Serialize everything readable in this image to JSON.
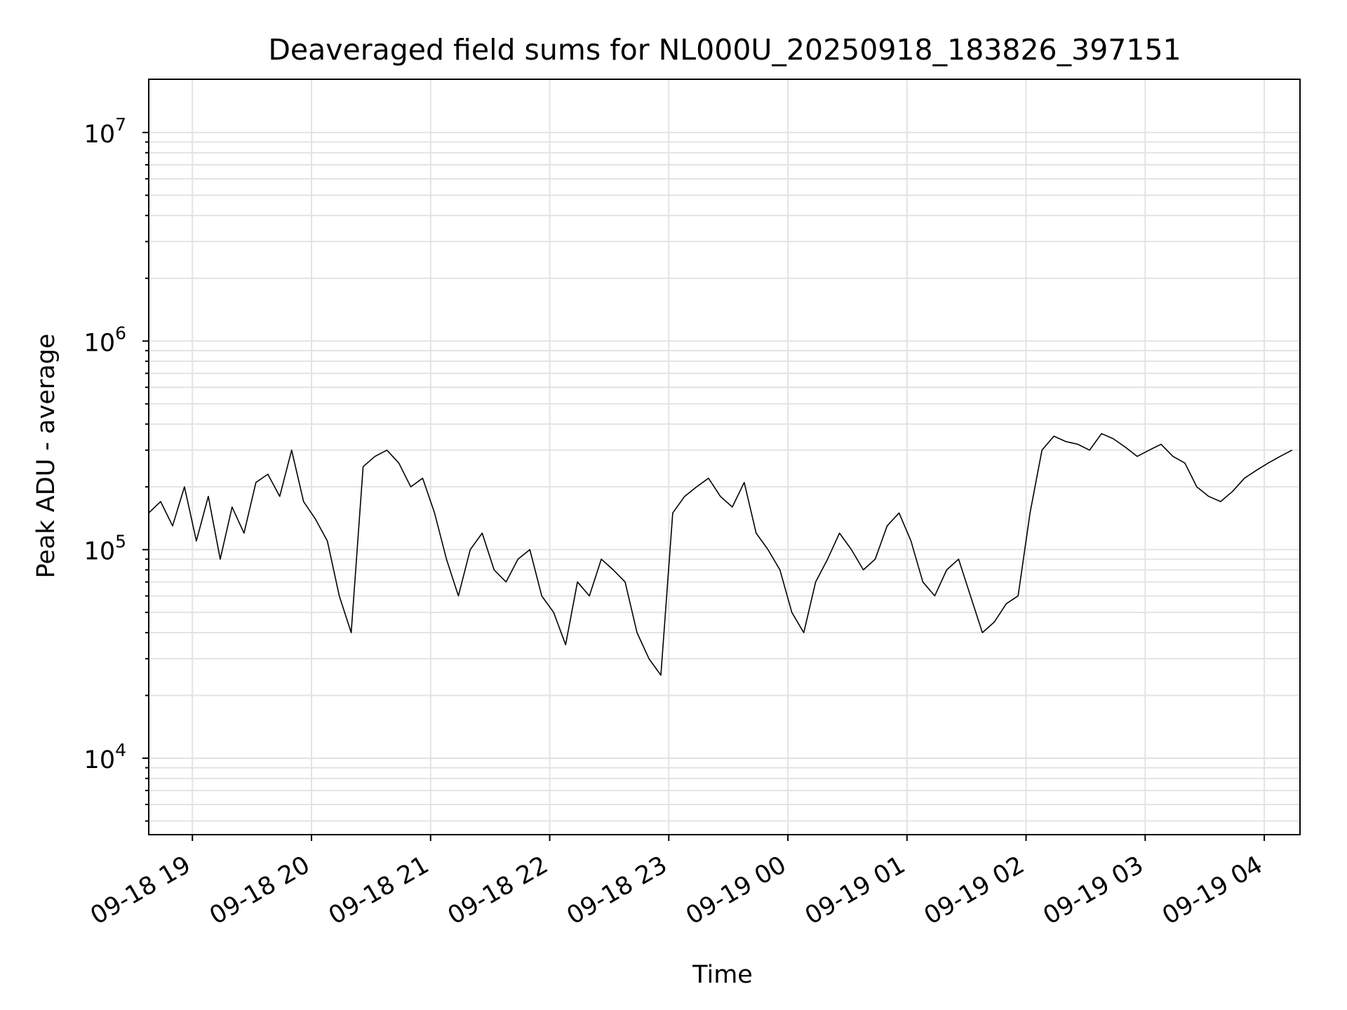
{
  "chart_data": {
    "type": "line",
    "title": "Deaveraged field sums for NL000U_20250918_183826_397151",
    "xlabel": "Time",
    "ylabel": "Peak ADU - average",
    "y_scale": "log",
    "x_range": [
      "2025-09-18 18:38",
      "2025-09-19 04:18"
    ],
    "ylim": [
      4300,
      18000000
    ],
    "x_ticks": [
      "09-18 19",
      "09-18 20",
      "09-18 21",
      "09-18 22",
      "09-18 23",
      "09-19 00",
      "09-19 01",
      "09-19 02",
      "09-19 03",
      "09-19 04"
    ],
    "y_ticks": [
      {
        "base": "10",
        "exp": "4"
      },
      {
        "base": "10",
        "exp": "5"
      },
      {
        "base": "10",
        "exp": "6"
      },
      {
        "base": "10",
        "exp": "7"
      }
    ],
    "grid": true,
    "line_color": "#000000",
    "grid_color": "#e3e3e3",
    "series": [
      {
        "x": [
          "2025-09-18 18:38",
          "2025-09-18 18:44",
          "2025-09-18 18:50",
          "2025-09-18 18:56",
          "2025-09-18 19:02",
          "2025-09-18 19:08",
          "2025-09-18 19:14",
          "2025-09-18 19:20",
          "2025-09-18 19:26",
          "2025-09-18 19:32",
          "2025-09-18 19:38",
          "2025-09-18 19:44",
          "2025-09-18 19:50",
          "2025-09-18 19:56",
          "2025-09-18 20:02",
          "2025-09-18 20:08",
          "2025-09-18 20:14",
          "2025-09-18 20:20",
          "2025-09-18 20:26",
          "2025-09-18 20:32",
          "2025-09-18 20:38",
          "2025-09-18 20:44",
          "2025-09-18 20:50",
          "2025-09-18 20:56",
          "2025-09-18 21:02",
          "2025-09-18 21:08",
          "2025-09-18 21:14",
          "2025-09-18 21:20",
          "2025-09-18 21:26",
          "2025-09-18 21:32",
          "2025-09-18 21:38",
          "2025-09-18 21:44",
          "2025-09-18 21:50",
          "2025-09-18 21:56",
          "2025-09-18 22:02",
          "2025-09-18 22:08",
          "2025-09-18 22:14",
          "2025-09-18 22:20",
          "2025-09-18 22:26",
          "2025-09-18 22:32",
          "2025-09-18 22:38",
          "2025-09-18 22:44",
          "2025-09-18 22:50",
          "2025-09-18 22:56",
          "2025-09-18 23:02",
          "2025-09-18 23:08",
          "2025-09-18 23:14",
          "2025-09-18 23:20",
          "2025-09-18 23:26",
          "2025-09-18 23:32",
          "2025-09-18 23:38",
          "2025-09-18 23:44",
          "2025-09-18 23:50",
          "2025-09-18 23:56",
          "2025-09-19 00:02",
          "2025-09-19 00:08",
          "2025-09-19 00:14",
          "2025-09-19 00:20",
          "2025-09-19 00:26",
          "2025-09-19 00:32",
          "2025-09-19 00:38",
          "2025-09-19 00:44",
          "2025-09-19 00:50",
          "2025-09-19 00:56",
          "2025-09-19 01:02",
          "2025-09-19 01:08",
          "2025-09-19 01:14",
          "2025-09-19 01:20",
          "2025-09-19 01:26",
          "2025-09-19 01:32",
          "2025-09-19 01:38",
          "2025-09-19 01:44",
          "2025-09-19 01:50",
          "2025-09-19 01:56",
          "2025-09-19 02:02",
          "2025-09-19 02:08",
          "2025-09-19 02:14",
          "2025-09-19 02:20",
          "2025-09-19 02:26",
          "2025-09-19 02:32",
          "2025-09-19 02:38",
          "2025-09-19 02:44",
          "2025-09-19 02:50",
          "2025-09-19 02:56",
          "2025-09-19 03:02",
          "2025-09-19 03:08",
          "2025-09-19 03:14",
          "2025-09-19 03:20",
          "2025-09-19 03:26",
          "2025-09-19 03:32",
          "2025-09-19 03:38",
          "2025-09-19 03:44",
          "2025-09-19 03:50",
          "2025-09-19 03:56",
          "2025-09-19 04:02",
          "2025-09-19 04:08",
          "2025-09-19 04:14"
        ],
        "y": [
          150000,
          170000,
          130000,
          200000,
          110000,
          180000,
          90000,
          160000,
          120000,
          210000,
          230000,
          180000,
          300000,
          170000,
          140000,
          110000,
          60000,
          40000,
          250000,
          280000,
          300000,
          260000,
          200000,
          220000,
          150000,
          90000,
          60000,
          100000,
          120000,
          80000,
          70000,
          90000,
          100000,
          60000,
          50000,
          35000,
          70000,
          60000,
          90000,
          80000,
          70000,
          40000,
          30000,
          25000,
          150000,
          180000,
          200000,
          220000,
          180000,
          160000,
          210000,
          120000,
          100000,
          80000,
          50000,
          40000,
          70000,
          90000,
          120000,
          100000,
          80000,
          90000,
          130000,
          150000,
          110000,
          70000,
          60000,
          80000,
          90000,
          60000,
          40000,
          45000,
          55000,
          60000,
          150000,
          300000,
          350000,
          330000,
          320000,
          300000,
          360000,
          340000,
          310000,
          280000,
          300000,
          320000,
          280000,
          260000,
          200000,
          180000,
          170000,
          190000,
          220000,
          240000,
          260000,
          280000,
          300000
        ]
      }
    ]
  }
}
